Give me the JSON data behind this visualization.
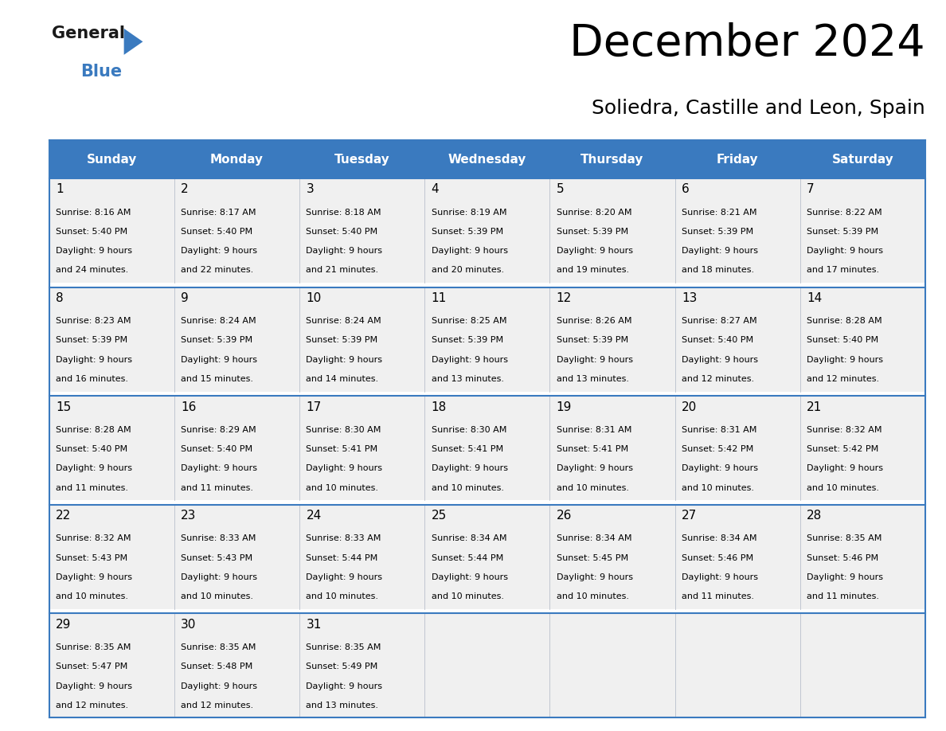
{
  "title": "December 2024",
  "subtitle": "Soliedra, Castille and Leon, Spain",
  "header_color": "#3a7abf",
  "header_text_color": "#ffffff",
  "border_color": "#3a7abf",
  "grid_color": "#b0b8c8",
  "cell_bg_color": "#f0f0f0",
  "day_names": [
    "Sunday",
    "Monday",
    "Tuesday",
    "Wednesday",
    "Thursday",
    "Friday",
    "Saturday"
  ],
  "weeks": [
    [
      {
        "day": "1",
        "sunrise": "8:16 AM",
        "sunset": "5:40 PM",
        "daylight_h": "9 hours",
        "daylight_m": "and 24 minutes."
      },
      {
        "day": "2",
        "sunrise": "8:17 AM",
        "sunset": "5:40 PM",
        "daylight_h": "9 hours",
        "daylight_m": "and 22 minutes."
      },
      {
        "day": "3",
        "sunrise": "8:18 AM",
        "sunset": "5:40 PM",
        "daylight_h": "9 hours",
        "daylight_m": "and 21 minutes."
      },
      {
        "day": "4",
        "sunrise": "8:19 AM",
        "sunset": "5:39 PM",
        "daylight_h": "9 hours",
        "daylight_m": "and 20 minutes."
      },
      {
        "day": "5",
        "sunrise": "8:20 AM",
        "sunset": "5:39 PM",
        "daylight_h": "9 hours",
        "daylight_m": "and 19 minutes."
      },
      {
        "day": "6",
        "sunrise": "8:21 AM",
        "sunset": "5:39 PM",
        "daylight_h": "9 hours",
        "daylight_m": "and 18 minutes."
      },
      {
        "day": "7",
        "sunrise": "8:22 AM",
        "sunset": "5:39 PM",
        "daylight_h": "9 hours",
        "daylight_m": "and 17 minutes."
      }
    ],
    [
      {
        "day": "8",
        "sunrise": "8:23 AM",
        "sunset": "5:39 PM",
        "daylight_h": "9 hours",
        "daylight_m": "and 16 minutes."
      },
      {
        "day": "9",
        "sunrise": "8:24 AM",
        "sunset": "5:39 PM",
        "daylight_h": "9 hours",
        "daylight_m": "and 15 minutes."
      },
      {
        "day": "10",
        "sunrise": "8:24 AM",
        "sunset": "5:39 PM",
        "daylight_h": "9 hours",
        "daylight_m": "and 14 minutes."
      },
      {
        "day": "11",
        "sunrise": "8:25 AM",
        "sunset": "5:39 PM",
        "daylight_h": "9 hours",
        "daylight_m": "and 13 minutes."
      },
      {
        "day": "12",
        "sunrise": "8:26 AM",
        "sunset": "5:39 PM",
        "daylight_h": "9 hours",
        "daylight_m": "and 13 minutes."
      },
      {
        "day": "13",
        "sunrise": "8:27 AM",
        "sunset": "5:40 PM",
        "daylight_h": "9 hours",
        "daylight_m": "and 12 minutes."
      },
      {
        "day": "14",
        "sunrise": "8:28 AM",
        "sunset": "5:40 PM",
        "daylight_h": "9 hours",
        "daylight_m": "and 12 minutes."
      }
    ],
    [
      {
        "day": "15",
        "sunrise": "8:28 AM",
        "sunset": "5:40 PM",
        "daylight_h": "9 hours",
        "daylight_m": "and 11 minutes."
      },
      {
        "day": "16",
        "sunrise": "8:29 AM",
        "sunset": "5:40 PM",
        "daylight_h": "9 hours",
        "daylight_m": "and 11 minutes."
      },
      {
        "day": "17",
        "sunrise": "8:30 AM",
        "sunset": "5:41 PM",
        "daylight_h": "9 hours",
        "daylight_m": "and 10 minutes."
      },
      {
        "day": "18",
        "sunrise": "8:30 AM",
        "sunset": "5:41 PM",
        "daylight_h": "9 hours",
        "daylight_m": "and 10 minutes."
      },
      {
        "day": "19",
        "sunrise": "8:31 AM",
        "sunset": "5:41 PM",
        "daylight_h": "9 hours",
        "daylight_m": "and 10 minutes."
      },
      {
        "day": "20",
        "sunrise": "8:31 AM",
        "sunset": "5:42 PM",
        "daylight_h": "9 hours",
        "daylight_m": "and 10 minutes."
      },
      {
        "day": "21",
        "sunrise": "8:32 AM",
        "sunset": "5:42 PM",
        "daylight_h": "9 hours",
        "daylight_m": "and 10 minutes."
      }
    ],
    [
      {
        "day": "22",
        "sunrise": "8:32 AM",
        "sunset": "5:43 PM",
        "daylight_h": "9 hours",
        "daylight_m": "and 10 minutes."
      },
      {
        "day": "23",
        "sunrise": "8:33 AM",
        "sunset": "5:43 PM",
        "daylight_h": "9 hours",
        "daylight_m": "and 10 minutes."
      },
      {
        "day": "24",
        "sunrise": "8:33 AM",
        "sunset": "5:44 PM",
        "daylight_h": "9 hours",
        "daylight_m": "and 10 minutes."
      },
      {
        "day": "25",
        "sunrise": "8:34 AM",
        "sunset": "5:44 PM",
        "daylight_h": "9 hours",
        "daylight_m": "and 10 minutes."
      },
      {
        "day": "26",
        "sunrise": "8:34 AM",
        "sunset": "5:45 PM",
        "daylight_h": "9 hours",
        "daylight_m": "and 10 minutes."
      },
      {
        "day": "27",
        "sunrise": "8:34 AM",
        "sunset": "5:46 PM",
        "daylight_h": "9 hours",
        "daylight_m": "and 11 minutes."
      },
      {
        "day": "28",
        "sunrise": "8:35 AM",
        "sunset": "5:46 PM",
        "daylight_h": "9 hours",
        "daylight_m": "and 11 minutes."
      }
    ],
    [
      {
        "day": "29",
        "sunrise": "8:35 AM",
        "sunset": "5:47 PM",
        "daylight_h": "9 hours",
        "daylight_m": "and 12 minutes."
      },
      {
        "day": "30",
        "sunrise": "8:35 AM",
        "sunset": "5:48 PM",
        "daylight_h": "9 hours",
        "daylight_m": "and 12 minutes."
      },
      {
        "day": "31",
        "sunrise": "8:35 AM",
        "sunset": "5:49 PM",
        "daylight_h": "9 hours",
        "daylight_m": "and 13 minutes."
      },
      null,
      null,
      null,
      null
    ]
  ]
}
